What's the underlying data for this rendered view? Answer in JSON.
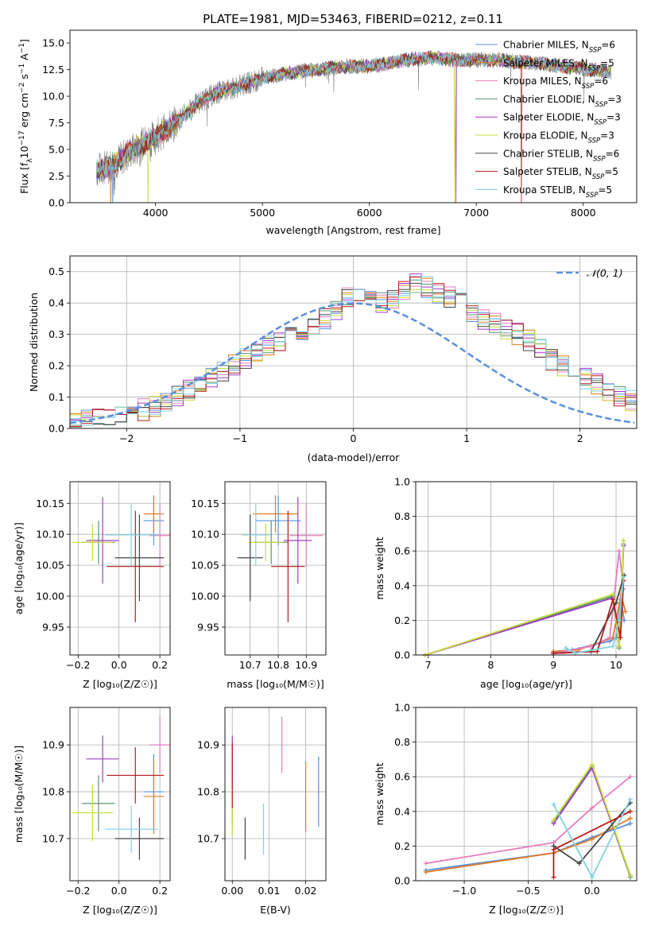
{
  "figure": {
    "title": "PLATE=1981, MJD=53463, FIBERID=0212, z=0.11"
  },
  "chart_data": [
    {
      "id": "spectrum",
      "type": "line",
      "title": "PLATE=1981, MJD=53463, FIBERID=0212, z=0.11",
      "xlabel": "wavelength [Angstrom, rest frame]",
      "ylabel": "Flux [f_λ 10^-17 erg cm^-2 s^-1 A^-1]",
      "xlim": [
        3200,
        8500
      ],
      "ylim": [
        0,
        16.2
      ],
      "xticks": [
        4000,
        5000,
        6000,
        7000,
        8000
      ],
      "yticks": [
        0.0,
        2.5,
        5.0,
        7.5,
        10.0,
        12.5,
        15.0
      ],
      "grid": false,
      "legend_position": "top-right",
      "continuum": {
        "x": [
          3450,
          3600,
          3800,
          4000,
          4200,
          4400,
          4600,
          4800,
          5000,
          5200,
          5400,
          5600,
          5800,
          6000,
          6200,
          6400,
          6600,
          6800,
          7000,
          7200,
          7400,
          7600,
          7800,
          8000,
          8250
        ],
        "y": [
          3.0,
          3.6,
          5.0,
          6.2,
          7.6,
          9.4,
          10.4,
          11.0,
          11.7,
          12.1,
          12.4,
          12.6,
          12.8,
          12.8,
          13.1,
          13.5,
          13.6,
          13.4,
          13.4,
          13.4,
          13.2,
          13.1,
          12.8,
          12.6,
          12.3
        ]
      },
      "drops": [
        {
          "series": "Salpeter MILES",
          "x": 3580
        },
        {
          "series": "Chabrier MILES",
          "x": 3600
        },
        {
          "series": "Kroupa ELODIE",
          "x": 3930
        },
        {
          "series": "Kroupa ELODIE",
          "x": 6800
        },
        {
          "series": "Salpeter ELODIE",
          "x": 6810
        },
        {
          "series": "Salpeter STELIB",
          "x": 7420
        }
      ]
    },
    {
      "id": "residuals",
      "type": "histogram",
      "xlabel": "(data-model)/error",
      "ylabel": "Normed distribution",
      "xlim": [
        -2.5,
        2.5
      ],
      "ylim": [
        0,
        0.55
      ],
      "xticks": [
        -2,
        -1,
        0,
        1,
        2
      ],
      "yticks": [
        0.0,
        0.1,
        0.2,
        0.3,
        0.4,
        0.5
      ],
      "grid": true,
      "legend_position": "top-right",
      "legend": "𝒩(0, 1)",
      "bin_width": 0.1,
      "bin_start": -2.5,
      "base": [
        0.02,
        0.03,
        0.03,
        0.04,
        0.04,
        0.05,
        0.06,
        0.07,
        0.09,
        0.1,
        0.12,
        0.14,
        0.16,
        0.18,
        0.2,
        0.22,
        0.24,
        0.26,
        0.28,
        0.29,
        0.31,
        0.33,
        0.35,
        0.38,
        0.42,
        0.44,
        0.43,
        0.4,
        0.41,
        0.44,
        0.46,
        0.45,
        0.43,
        0.42,
        0.4,
        0.37,
        0.35,
        0.34,
        0.32,
        0.3,
        0.28,
        0.25,
        0.22,
        0.2,
        0.18,
        0.16,
        0.14,
        0.12,
        0.1,
        0.09,
        0.07,
        0.06,
        0.05,
        0.04,
        0.03,
        0.03,
        0.02
      ]
    },
    {
      "id": "age-vs-z",
      "type": "scatter",
      "xlabel": "Z [log₁₀(Z/Z☉)]",
      "ylabel": "age  [log₁₀(age/yr)]",
      "xlim": [
        -0.24,
        0.25
      ],
      "ylim": [
        9.905,
        10.185
      ],
      "xticks": [
        -0.2,
        0.0,
        0.2
      ],
      "yticks": [
        9.95,
        10.0,
        10.05,
        10.1,
        10.15
      ],
      "grid": true
    },
    {
      "id": "age-vs-mass",
      "type": "scatter",
      "xlabel": "mass [log₁₀(M/M☉)]",
      "xlim": [
        10.61,
        10.97
      ],
      "ylim": [
        9.905,
        10.185
      ],
      "xticks": [
        10.7,
        10.8,
        10.9
      ],
      "yticks": [
        9.95,
        10.0,
        10.05,
        10.1,
        10.15
      ],
      "grid": true
    },
    {
      "id": "weight-vs-age",
      "type": "line",
      "xlabel": "age  [log₁₀(age/yr)]",
      "ylabel": "mass weight",
      "xlim": [
        6.8,
        10.33
      ],
      "ylim": [
        0,
        1.0
      ],
      "xticks": [
        7,
        8,
        9,
        10
      ],
      "yticks": [
        0.0,
        0.2,
        0.4,
        0.6,
        0.8,
        1.0
      ],
      "grid": true
    },
    {
      "id": "mass-vs-z",
      "type": "scatter",
      "xlabel": "Z [log₁₀(Z/Z☉)]",
      "ylabel": "mass [log₁₀(M/M☉)]",
      "xlim": [
        -0.24,
        0.25
      ],
      "ylim": [
        10.61,
        10.98
      ],
      "xticks": [
        -0.2,
        0.0,
        0.2
      ],
      "yticks": [
        10.7,
        10.8,
        10.9
      ],
      "grid": true
    },
    {
      "id": "mass-vs-ebv",
      "type": "scatter",
      "xlabel": "E(B-V)",
      "xlim": [
        -0.002,
        0.0255
      ],
      "ylim": [
        10.61,
        10.98
      ],
      "xticks": [
        0.0,
        0.01,
        0.02
      ],
      "xticklabels": [
        "0.00",
        "0.01",
        "0.02"
      ],
      "yticks": [
        10.7,
        10.8,
        10.9
      ],
      "grid": true
    },
    {
      "id": "weight-vs-z",
      "type": "line",
      "xlabel": "Z [log₁₀(Z/Z☉)]",
      "ylabel": "mass weight",
      "xlim": [
        -1.38,
        0.35
      ],
      "ylim": [
        0,
        1.0
      ],
      "xticks": [
        -1.0,
        -0.5,
        0.0
      ],
      "yticks": [
        0.0,
        0.2,
        0.4,
        0.6,
        0.8,
        1.0
      ],
      "grid": true
    }
  ],
  "series": [
    {
      "name": "Chabrier MILES",
      "nssp": "6",
      "color": "#5b8fdc",
      "z": 0.17,
      "z_err": 0.05,
      "age": 10.122,
      "age_err": 0.04,
      "mass": 10.8,
      "mass_err": 0.08,
      "ebv": 0.0235,
      "ebv_mass_err": 0.075,
      "age_weights": [
        [
          9.0,
          0.02
        ],
        [
          9.3,
          0.03
        ],
        [
          9.9,
          0.08
        ],
        [
          10.0,
          0.1
        ],
        [
          10.08,
          0.32
        ],
        [
          10.13,
          0.2
        ]
      ],
      "z_weights": [
        [
          -1.3,
          0.06
        ],
        [
          -0.3,
          0.16
        ],
        [
          0.0,
          0.25
        ],
        [
          0.3,
          0.33
        ]
      ]
    },
    {
      "name": "Salpeter MILES",
      "nssp": "5",
      "color": "#e07b25",
      "z": 0.17,
      "z_err": 0.05,
      "age": 10.133,
      "age_err": 0.03,
      "mass": 10.79,
      "mass_err": 0.08,
      "ebv": 0.02,
      "ebv_mass_err": 0.075,
      "age_weights": [
        [
          9.0,
          0.02
        ],
        [
          9.4,
          0.03
        ],
        [
          9.95,
          0.1
        ],
        [
          10.08,
          0.35
        ],
        [
          10.15,
          0.25
        ]
      ],
      "z_weights": [
        [
          -1.3,
          0.05
        ],
        [
          -0.3,
          0.16
        ],
        [
          0.0,
          0.24
        ],
        [
          0.3,
          0.36
        ]
      ]
    },
    {
      "name": "Kroupa MILES",
      "nssp": "6",
      "color": "#e67fbd",
      "z": 0.2,
      "z_err": 0.05,
      "age": 10.098,
      "age_err": 0.05,
      "mass": 10.9,
      "mass_err": 0.06,
      "ebv": 0.0135,
      "ebv_mass_err": 0.06,
      "age_weights": [
        [
          9.0,
          0.01
        ],
        [
          9.6,
          0.05
        ],
        [
          9.9,
          0.1
        ],
        [
          10.05,
          0.6
        ],
        [
          10.12,
          0.38
        ]
      ],
      "z_weights": [
        [
          -1.3,
          0.1
        ],
        [
          -0.3,
          0.22
        ],
        [
          0.0,
          0.42
        ],
        [
          0.3,
          0.6
        ]
      ]
    },
    {
      "name": "Chabrier ELODIE",
      "nssp": "3",
      "color": "#5a9470",
      "z": -0.1,
      "z_err": 0.08,
      "age": 10.087,
      "age_err": 0.035,
      "mass": 10.775,
      "mass_err": 0.06,
      "ebv": 0.0,
      "ebv_mass_err": 0.05,
      "age_weights": [
        [
          6.95,
          0.0
        ],
        [
          9.95,
          0.34
        ],
        [
          10.05,
          0.04
        ],
        [
          10.12,
          0.64
        ]
      ],
      "z_weights": [
        [
          -0.3,
          0.34
        ],
        [
          0.0,
          0.66
        ],
        [
          0.3,
          0.02
        ]
      ]
    },
    {
      "name": "Salpeter ELODIE",
      "nssp": "3",
      "color": "#a03cc8",
      "z": -0.08,
      "z_err": 0.08,
      "age": 10.09,
      "age_err": 0.07,
      "mass": 10.87,
      "mass_err": 0.05,
      "ebv": 0.0,
      "ebv_mass_err": 0.05,
      "age_weights": [
        [
          6.95,
          0.0
        ],
        [
          9.95,
          0.33
        ],
        [
          10.05,
          0.05
        ],
        [
          10.12,
          0.63
        ]
      ],
      "z_weights": [
        [
          -0.3,
          0.33
        ],
        [
          0.0,
          0.65
        ],
        [
          0.3,
          0.03
        ]
      ]
    },
    {
      "name": "Kroupa ELODIE",
      "nssp": "3",
      "color": "#c8dc3c",
      "z": -0.13,
      "z_err": 0.1,
      "age": 10.087,
      "age_err": 0.03,
      "mass": 10.755,
      "mass_err": 0.06,
      "ebv": 0.0,
      "ebv_mass_err": 0.05,
      "age_weights": [
        [
          6.95,
          0.0
        ],
        [
          9.95,
          0.35
        ],
        [
          10.05,
          0.05
        ],
        [
          10.12,
          0.66
        ]
      ],
      "z_weights": [
        [
          -0.3,
          0.35
        ],
        [
          0.0,
          0.67
        ],
        [
          0.3,
          0.03
        ]
      ]
    },
    {
      "name": "Chabrier STELIB",
      "nssp": "6",
      "color": "#444444",
      "z": 0.1,
      "z_err": 0.12,
      "age": 10.062,
      "age_err": 0.07,
      "mass": 10.7,
      "mass_err": 0.045,
      "ebv": 0.0035,
      "ebv_mass_err": 0.045,
      "age_weights": [
        [
          9.0,
          0.01
        ],
        [
          9.6,
          0.02
        ],
        [
          10.0,
          0.3
        ],
        [
          10.13,
          0.46
        ]
      ],
      "z_weights": [
        [
          -0.3,
          0.2
        ],
        [
          -0.1,
          0.1
        ],
        [
          0.3,
          0.45
        ]
      ]
    },
    {
      "name": "Salpeter STELIB",
      "nssp": "5",
      "color": "#b51c1c",
      "z": 0.08,
      "z_err": 0.14,
      "age": 10.048,
      "age_err": 0.09,
      "mass": 10.835,
      "mass_err": 0.06,
      "ebv": 0.0,
      "ebv_mass_err": 0.07,
      "age_weights": [
        [
          9.0,
          0.01
        ],
        [
          9.7,
          0.02
        ],
        [
          9.95,
          0.32
        ],
        [
          10.07,
          0.1
        ],
        [
          10.12,
          0.43
        ]
      ],
      "z_weights": [
        [
          -0.3,
          0.02
        ],
        [
          -0.3,
          0.18
        ],
        [
          0.3,
          0.4
        ]
      ]
    },
    {
      "name": "Kroupa STELIB",
      "nssp": "5",
      "color": "#7fd3e0",
      "z": 0.06,
      "z_err": 0.13,
      "age": 10.099,
      "age_err": 0.05,
      "mass": 10.72,
      "mass_err": 0.05,
      "ebv": 0.0085,
      "ebv_mass_err": 0.055,
      "age_weights": [
        [
          9.2,
          0.04
        ],
        [
          9.35,
          0.01
        ],
        [
          9.95,
          0.05
        ],
        [
          10.05,
          0.2
        ],
        [
          10.12,
          0.45
        ]
      ],
      "z_weights": [
        [
          -0.3,
          0.44
        ],
        [
          0.0,
          0.02
        ],
        [
          0.3,
          0.47
        ]
      ]
    }
  ],
  "normal_curve": {
    "mean": 0,
    "sigma": 1
  }
}
